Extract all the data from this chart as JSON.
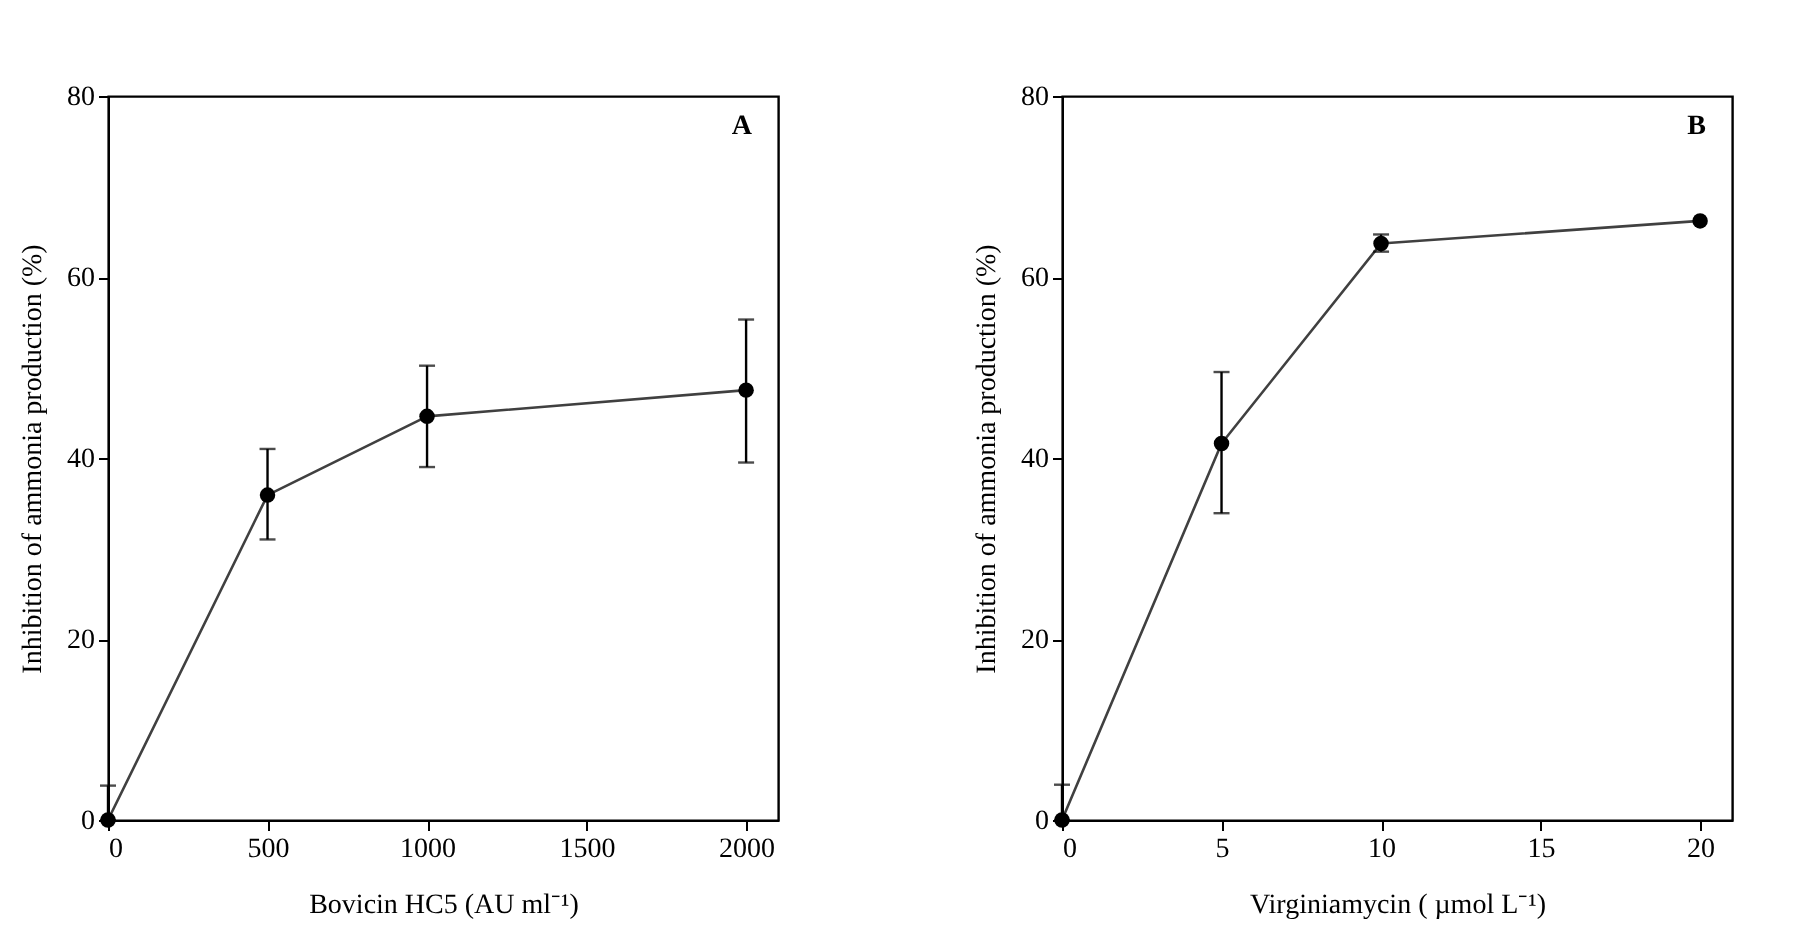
{
  "chart_data": [
    {
      "type": "line",
      "xlabel": "Bovicin HC5 (AU ml⁻¹)",
      "ylabel": "Inhibition of ammonia production (%)",
      "annotations": [
        "A"
      ],
      "x": [
        0,
        500,
        1000,
        2000
      ],
      "xlim": [
        0,
        2100
      ],
      "xticks": [
        0,
        500,
        1000,
        1500,
        2000
      ],
      "ylim": [
        0,
        80
      ],
      "yticks": [
        0,
        20,
        40,
        60,
        80
      ],
      "marker": "circle",
      "grid": false,
      "series": [
        {
          "color": "#000000",
          "values": [
            0,
            35.9,
            44.6,
            47.5
          ],
          "errors": [
            [
              0,
              3.8
            ],
            [
              31.0,
              41.0
            ],
            [
              39.0,
              50.2
            ],
            [
              39.5,
              55.3
            ]
          ]
        }
      ]
    },
    {
      "type": "line",
      "xlabel": "Virginiamycin ( µmol L⁻¹)",
      "ylabel": "Inhibition of ammonia production (%)",
      "annotations": [
        "B"
      ],
      "x": [
        0,
        5,
        10,
        20
      ],
      "xlim": [
        0,
        21
      ],
      "xticks": [
        0,
        5,
        10,
        15,
        20
      ],
      "ylim": [
        0,
        80
      ],
      "yticks": [
        0,
        20,
        40,
        60,
        80
      ],
      "marker": "circle",
      "grid": false,
      "series": [
        {
          "color": "#000000",
          "values": [
            0,
            41.6,
            63.7,
            66.2
          ],
          "errors": [
            [
              0,
              3.9
            ],
            [
              33.9,
              49.5
            ],
            [
              62.8,
              64.7
            ],
            null
          ]
        }
      ]
    }
  ]
}
